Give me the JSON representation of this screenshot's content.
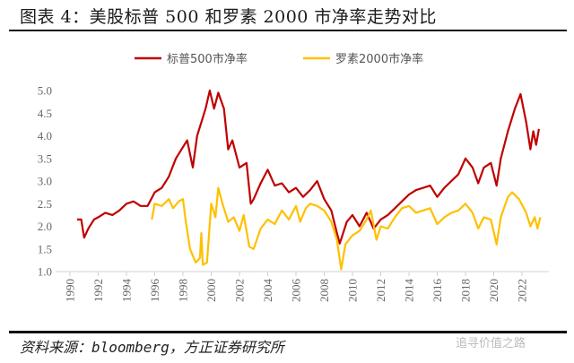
{
  "header": {
    "title": "图表 4：美股标普 500 和罗素 2000 市净率走势对比"
  },
  "footer": {
    "source": "资料来源：bloomberg，方正证券研究所",
    "watermark": "追寻价值之路"
  },
  "chart_data": {
    "type": "line",
    "title": "",
    "xlabel": "",
    "ylabel": "",
    "xlim": [
      1990,
      2023.3
    ],
    "ylim": [
      1.0,
      5.0
    ],
    "yticks": [
      "1.0",
      "1.5",
      "2.0",
      "2.5",
      "3.0",
      "3.5",
      "4.0",
      "4.5",
      "5.0"
    ],
    "xticks": [
      "1990",
      "1992",
      "1994",
      "1996",
      "1998",
      "2000",
      "2002",
      "2004",
      "2006",
      "2008",
      "2010",
      "2012",
      "2014",
      "2016",
      "2018",
      "2020",
      "2022"
    ],
    "grid": false,
    "legend_position": "top-center",
    "series": [
      {
        "name": "标普500市净率",
        "color": "#C00000",
        "x": [
          1990.5,
          1990.8,
          1991.0,
          1991.3,
          1991.7,
          1992.0,
          1992.5,
          1993.0,
          1993.5,
          1994.0,
          1994.5,
          1995.0,
          1995.5,
          1996.0,
          1996.5,
          1997.0,
          1997.5,
          1998.0,
          1998.3,
          1998.7,
          1999.0,
          1999.3,
          1999.6,
          1999.9,
          2000.2,
          2000.5,
          2000.9,
          2001.2,
          2001.5,
          2002.0,
          2002.5,
          2002.8,
          2003.0,
          2003.5,
          2004.0,
          2004.5,
          2005.0,
          2005.5,
          2006.0,
          2006.5,
          2007.0,
          2007.5,
          2008.0,
          2008.5,
          2008.9,
          2009.1,
          2009.6,
          2010.0,
          2010.5,
          2011.0,
          2011.5,
          2012.0,
          2012.5,
          2013.0,
          2013.5,
          2014.0,
          2014.5,
          2015.0,
          2015.5,
          2016.0,
          2016.5,
          2017.0,
          2017.5,
          2018.0,
          2018.5,
          2018.9,
          2019.3,
          2019.8,
          2020.2,
          2020.5,
          2021.0,
          2021.5,
          2021.9,
          2022.3,
          2022.6,
          2022.8,
          2023.0,
          2023.2
        ],
        "y": [
          2.15,
          2.15,
          1.75,
          1.95,
          2.15,
          2.2,
          2.3,
          2.25,
          2.35,
          2.5,
          2.55,
          2.45,
          2.45,
          2.75,
          2.85,
          3.1,
          3.5,
          3.75,
          3.9,
          3.3,
          4.0,
          4.3,
          4.6,
          5.0,
          4.6,
          4.95,
          4.6,
          3.7,
          3.9,
          3.3,
          3.4,
          2.5,
          2.6,
          2.95,
          3.25,
          2.9,
          2.95,
          2.75,
          2.85,
          2.65,
          2.8,
          3.0,
          2.6,
          2.35,
          1.85,
          1.62,
          2.1,
          2.25,
          2.0,
          2.3,
          1.95,
          2.15,
          2.25,
          2.4,
          2.55,
          2.7,
          2.8,
          2.85,
          2.9,
          2.65,
          2.85,
          3.0,
          3.15,
          3.5,
          3.3,
          2.95,
          3.3,
          3.4,
          2.9,
          3.5,
          4.1,
          4.6,
          4.92,
          4.3,
          3.7,
          4.1,
          3.8,
          4.15
        ]
      },
      {
        "name": "罗素2000市净率",
        "color": "#FFC000",
        "x": [
          1995.8,
          1996.0,
          1996.5,
          1997.0,
          1997.3,
          1997.7,
          1998.0,
          1998.2,
          1998.5,
          1998.9,
          1999.2,
          1999.3,
          1999.4,
          1999.7,
          2000.0,
          2000.3,
          2000.5,
          2000.8,
          2001.2,
          2001.6,
          2002.0,
          2002.3,
          2002.7,
          2003.0,
          2003.5,
          2004.0,
          2004.5,
          2005.0,
          2005.5,
          2006.0,
          2006.3,
          2006.7,
          2007.0,
          2007.5,
          2008.0,
          2008.5,
          2008.9,
          2009.2,
          2009.5,
          2010.0,
          2010.5,
          2011.0,
          2011.3,
          2011.7,
          2012.0,
          2012.5,
          2013.0,
          2013.5,
          2014.0,
          2014.5,
          2015.0,
          2015.5,
          2016.0,
          2016.5,
          2017.0,
          2017.5,
          2018.0,
          2018.5,
          2018.9,
          2019.3,
          2019.8,
          2020.2,
          2020.5,
          2021.0,
          2021.3,
          2021.8,
          2022.3,
          2022.6,
          2022.9,
          2023.1,
          2023.3
        ],
        "y": [
          2.15,
          2.5,
          2.45,
          2.6,
          2.4,
          2.55,
          2.6,
          2.1,
          1.5,
          1.2,
          1.3,
          1.85,
          1.15,
          1.2,
          2.5,
          2.2,
          2.85,
          2.5,
          2.1,
          2.2,
          1.9,
          2.25,
          1.55,
          1.5,
          1.95,
          2.15,
          2.05,
          2.35,
          2.15,
          2.45,
          2.1,
          2.4,
          2.5,
          2.45,
          2.35,
          2.1,
          1.7,
          1.05,
          1.6,
          1.8,
          1.9,
          2.15,
          2.35,
          1.7,
          2.0,
          1.95,
          2.2,
          2.4,
          2.45,
          2.3,
          2.35,
          2.4,
          2.05,
          2.2,
          2.3,
          2.35,
          2.5,
          2.3,
          1.95,
          2.2,
          2.15,
          1.6,
          2.2,
          2.65,
          2.75,
          2.6,
          2.3,
          2.0,
          2.2,
          1.95,
          2.2
        ]
      }
    ]
  }
}
